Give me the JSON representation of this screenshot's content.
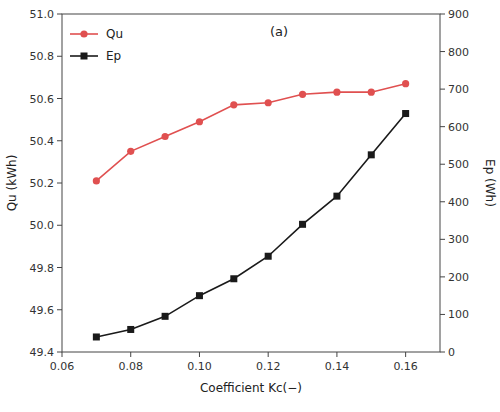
{
  "chart_data": {
    "type": "line",
    "x": [
      0.07,
      0.08,
      0.09,
      0.1,
      0.11,
      0.12,
      0.13,
      0.14,
      0.15,
      0.16
    ],
    "series": [
      {
        "name": "Qu",
        "color": "#e05050",
        "marker": "circle",
        "line_style": "solid",
        "values": [
          50.21,
          50.35,
          50.42,
          50.49,
          50.57,
          50.58,
          50.62,
          50.63,
          50.63,
          50.67
        ]
      },
      {
        "name": "Ep",
        "color": "#1a1a1a",
        "marker": "square",
        "line_style": "solid",
        "axis": "y2",
        "values": [
          40,
          60,
          95,
          150,
          195,
          255,
          340,
          415,
          525,
          635
        ]
      }
    ],
    "xlabel": "Coefficient Kc(−)",
    "ylabel": "Qu (kWh)",
    "y2label": "Ep (Wh)",
    "annotation": "(a)",
    "xlim": [
      0.06,
      0.17
    ],
    "xticks": [
      0.06,
      0.08,
      {
        "value": 0.1,
        "label": "0.10"
      },
      0.12,
      0.14,
      0.16
    ],
    "ylim": [
      49.4,
      51.0
    ],
    "yticks": [
      49.4,
      49.6,
      49.8,
      {
        "value": 50.0,
        "label": "50.0"
      },
      50.2,
      50.4,
      50.6,
      50.8,
      {
        "value": 51.0,
        "label": "51.0"
      }
    ],
    "y2lim": [
      0,
      900
    ],
    "y2ticks": [
      0,
      100,
      200,
      300,
      400,
      500,
      600,
      700,
      800,
      900
    ],
    "grid": false,
    "legend": "upper left"
  }
}
